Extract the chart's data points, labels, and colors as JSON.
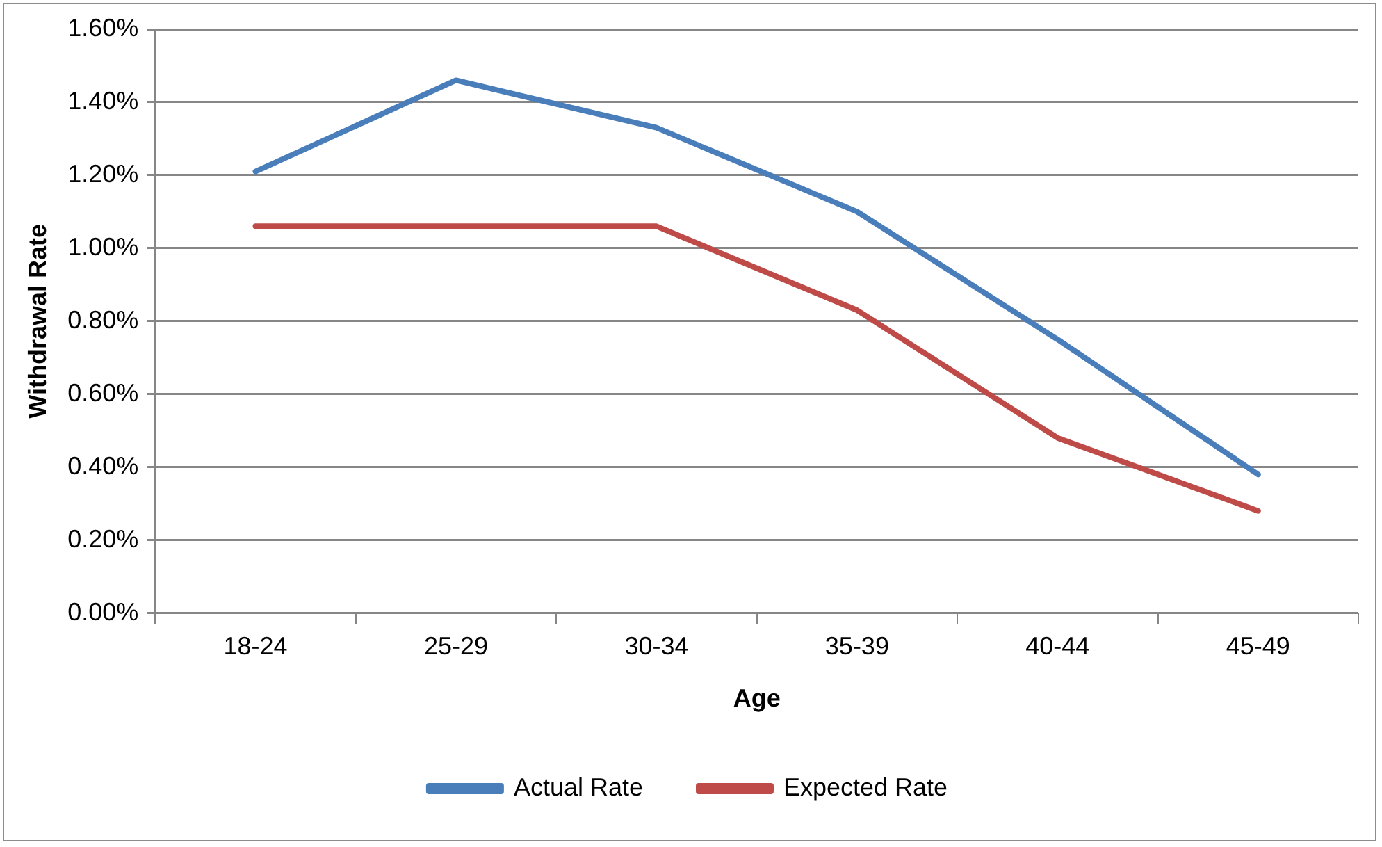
{
  "chart_data": {
    "type": "line",
    "xlabel": "Age",
    "ylabel": "Withdrawal Rate",
    "categories": [
      "18-24",
      "25-29",
      "30-34",
      "35-39",
      "40-44",
      "45-49"
    ],
    "series": [
      {
        "name": "Actual Rate",
        "color": "#4a7ebb",
        "values": [
          1.21,
          1.46,
          1.33,
          1.1,
          0.75,
          0.38
        ]
      },
      {
        "name": "Expected Rate",
        "color": "#be4b48",
        "values": [
          1.06,
          1.06,
          1.06,
          0.83,
          0.48,
          0.28
        ]
      }
    ],
    "ylim": [
      0,
      1.6
    ],
    "yticks": [
      {
        "value": 0,
        "label": "0.00%"
      },
      {
        "value": 0.2,
        "label": "0.20%"
      },
      {
        "value": 0.4,
        "label": "0.40%"
      },
      {
        "value": 0.6,
        "label": "0.60%"
      },
      {
        "value": 0.8,
        "label": "0.80%"
      },
      {
        "value": 1,
        "label": "1.00%"
      },
      {
        "value": 1.2,
        "label": "1.20%"
      },
      {
        "value": 1.4,
        "label": "1.40%"
      },
      {
        "value": 1.6,
        "label": "1.60%"
      }
    ],
    "grid": "y",
    "legend": "bottom",
    "marker": "none",
    "line_style": "solid"
  }
}
